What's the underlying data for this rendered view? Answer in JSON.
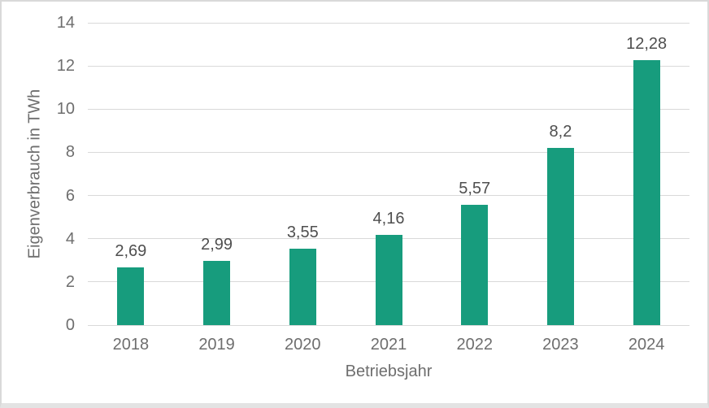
{
  "chart_data": {
    "type": "bar",
    "title": "",
    "categories": [
      "2018",
      "2019",
      "2020",
      "2021",
      "2022",
      "2023",
      "2024"
    ],
    "values": [
      2.69,
      2.99,
      3.55,
      4.16,
      5.57,
      8.2,
      12.28
    ],
    "value_labels": [
      "2,69",
      "2,99",
      "3,55",
      "4,16",
      "5,57",
      "8,2",
      "12,28"
    ],
    "xlabel": "Betriebsjahr",
    "ylabel": "Eigenverbrauch in TWh",
    "ylim": [
      0,
      14
    ],
    "yticks": [
      0,
      2,
      4,
      6,
      8,
      10,
      12,
      14
    ],
    "ytick_labels": [
      "0",
      "2",
      "4",
      "6",
      "8",
      "10",
      "12",
      "14"
    ],
    "grid": "horizontal",
    "legend": "none",
    "colors": {
      "bar": "#179c7d",
      "grid": "#d9d9d9",
      "axis_text": "#6e6e6e",
      "data_label_text": "#4f4f4f",
      "background": "#ffffff",
      "frame_border": "#d9d9d9"
    }
  }
}
